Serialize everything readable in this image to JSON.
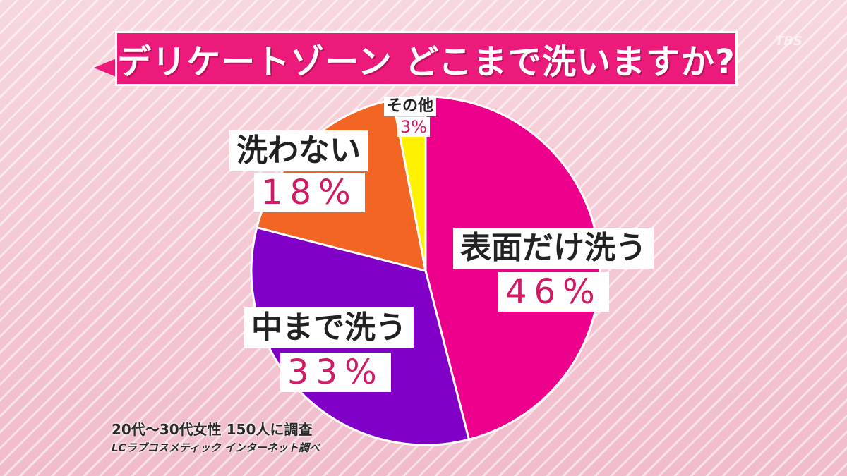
{
  "chart_data": {
    "type": "pie",
    "title": "デリケートゾーン どこまで洗いますか?",
    "categories": [
      "表面だけ洗う",
      "中まで洗う",
      "洗わない",
      "その他"
    ],
    "values": [
      46,
      33,
      18,
      3
    ],
    "value_labels": [
      "46%",
      "33%",
      "18%",
      "3%"
    ],
    "colors": [
      "#ec008c",
      "#8000c8",
      "#f26522",
      "#fff200"
    ],
    "start_angle_deg": 0,
    "direction": "clockwise",
    "legend": "none",
    "footnotes": [
      "20代〜30代女性 150人に調査",
      "LCラブコスメティック インターネット調べ"
    ]
  },
  "watermark": "TBS"
}
